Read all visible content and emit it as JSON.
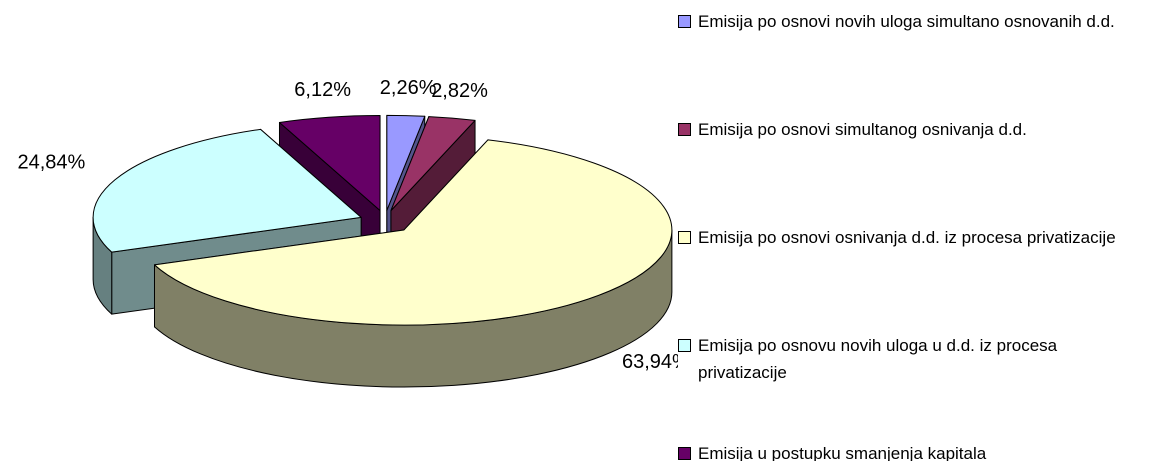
{
  "chart_data": {
    "type": "pie",
    "categories": [
      "Emisija po osnovi novih uloga simultano osnovanih d.d.",
      "Emisija po osnovi simultanog osnivanja d.d.",
      "Emisija po osnovi osnivanja d.d. iz procesa privatizacije",
      "Emisija po osnovu novih uloga u d.d. iz procesa privatizacije",
      "Emisija u postupku smanjenja kapitala"
    ],
    "values": [
      2.26,
      2.82,
      63.94,
      24.84,
      6.12
    ],
    "value_labels": [
      "2,26%",
      "2,82%",
      "63,94%",
      "24,84%",
      "6,12%"
    ],
    "colors": [
      "#9999ff",
      "#993366",
      "#ffffcc",
      "#ccffff",
      "#660066"
    ],
    "legend": "right"
  }
}
